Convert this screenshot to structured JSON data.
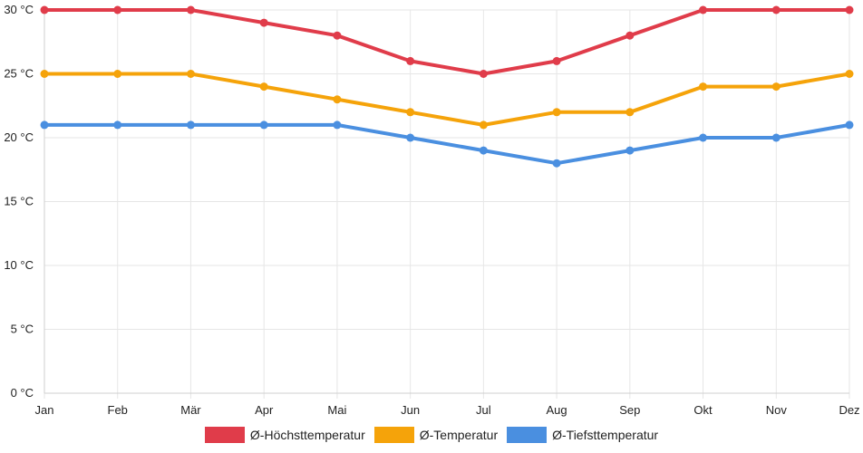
{
  "chart_data": {
    "type": "line",
    "categories": [
      "Jan",
      "Feb",
      "Mär",
      "Apr",
      "Mai",
      "Jun",
      "Jul",
      "Aug",
      "Sep",
      "Okt",
      "Nov",
      "Dez"
    ],
    "y_ticks": [
      "0 °C",
      "5 °C",
      "10 °C",
      "15 °C",
      "20 °C",
      "25 °C",
      "30 °C"
    ],
    "ylim": [
      0,
      30
    ],
    "y_step": 5,
    "grid": true,
    "legend_position": "bottom",
    "series": [
      {
        "name": "Ø-Höchsttemperatur",
        "color": "#e03c4a",
        "values": [
          30,
          30,
          30,
          29,
          28,
          26,
          25,
          26,
          28,
          30,
          30,
          30
        ]
      },
      {
        "name": "Ø-Temperatur",
        "color": "#f5a30a",
        "values": [
          25,
          25,
          25,
          24,
          23,
          22,
          21,
          22,
          22,
          24,
          24,
          25
        ]
      },
      {
        "name": "Ø-Tiefsttemperatur",
        "color": "#4a8fe0",
        "values": [
          21,
          21,
          21,
          21,
          21,
          20,
          19,
          18,
          19,
          20,
          20,
          21
        ]
      }
    ]
  }
}
